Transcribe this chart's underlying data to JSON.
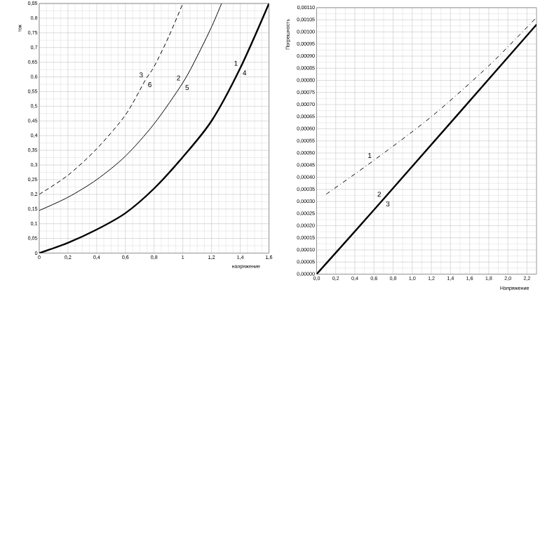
{
  "chart_data": [
    {
      "type": "line",
      "xlabel": "напряжение",
      "ylabel": "ток",
      "xlim": [
        0,
        1.6
      ],
      "ylim": [
        0,
        0.85
      ],
      "grid": true,
      "xticks": [
        0,
        {
          "value": 0.2,
          "label": "0,2"
        },
        {
          "value": 0.4,
          "label": "0,4"
        },
        {
          "value": 0.6,
          "label": "0,6"
        },
        {
          "value": 0.8,
          "label": "0,8"
        },
        1,
        {
          "value": 1.2,
          "label": "1,2"
        },
        {
          "value": 1.4,
          "label": "1,4"
        },
        {
          "value": 1.6,
          "label": "1,6"
        }
      ],
      "yticks": [
        0,
        {
          "value": 0.05,
          "label": "0,05"
        },
        {
          "value": 0.1,
          "label": "0,1"
        },
        {
          "value": 0.15,
          "label": "0,15"
        },
        {
          "value": 0.2,
          "label": "0,2"
        },
        {
          "value": 0.25,
          "label": "0,25"
        },
        {
          "value": 0.3,
          "label": "0,3"
        },
        {
          "value": 0.35,
          "label": "0,35"
        },
        {
          "value": 0.4,
          "label": "0,4"
        },
        {
          "value": 0.45,
          "label": "0,45"
        },
        {
          "value": 0.5,
          "label": "0,5"
        },
        {
          "value": 0.55,
          "label": "0,55"
        },
        {
          "value": 0.6,
          "label": "0,6"
        },
        {
          "value": 0.65,
          "label": "0,65"
        },
        {
          "value": 0.7,
          "label": "0,7"
        },
        {
          "value": 0.75,
          "label": "0,75"
        },
        {
          "value": 0.8,
          "label": "0,8"
        },
        {
          "value": 0.85,
          "label": "0,85"
        }
      ],
      "series": [
        {
          "color": "#000000",
          "line_style": "dotted",
          "x": [
            0,
            0.2,
            0.4,
            0.6,
            0.74,
            0.8,
            0.9,
            1.0
          ],
          "values": [
            0.2,
            0.265,
            0.355,
            0.47,
            0.59,
            0.635,
            0.735,
            0.85
          ]
        },
        {
          "color": "#000000",
          "line_style": "solid",
          "x": [
            0,
            0.2,
            0.4,
            0.6,
            0.8,
            1.0,
            1.1,
            1.2,
            1.27
          ],
          "values": [
            0.145,
            0.19,
            0.25,
            0.33,
            0.44,
            0.58,
            0.67,
            0.77,
            0.85
          ]
        },
        {
          "color": "#000000",
          "line_style": "solid",
          "x": [
            0,
            0.2,
            0.4,
            0.6,
            0.8,
            1.0,
            1.2,
            1.4,
            1.6
          ],
          "values": [
            0,
            0.035,
            0.08,
            0.136,
            0.22,
            0.327,
            0.45,
            0.63,
            0.85
          ]
        }
      ],
      "annotations": [
        {
          "text": "3",
          "x": 0.74,
          "y": 0.59
        },
        {
          "text": "6",
          "x": 0.74,
          "y": 0.59
        },
        {
          "text": "2",
          "x": 1.0,
          "y": 0.58
        },
        {
          "text": "5",
          "x": 1.0,
          "y": 0.58
        },
        {
          "text": "1",
          "x": 1.4,
          "y": 0.63
        },
        {
          "text": "4",
          "x": 1.4,
          "y": 0.63
        }
      ]
    },
    {
      "type": "line",
      "xlabel": "Напряжение",
      "ylabel": "Погрешность",
      "xlim": [
        0,
        2.3
      ],
      "ylim": [
        0,
        0.0011
      ],
      "grid": true,
      "xticks": [
        {
          "value": 0,
          "label": "0,0"
        },
        {
          "value": 0.2,
          "label": "0,2"
        },
        {
          "value": 0.4,
          "label": "0,4"
        },
        {
          "value": 0.6,
          "label": "0,6"
        },
        {
          "value": 0.8,
          "label": "0,8"
        },
        {
          "value": 1.0,
          "label": "1,0"
        },
        {
          "value": 1.2,
          "label": "1,2"
        },
        {
          "value": 1.4,
          "label": "1,4"
        },
        {
          "value": 1.6,
          "label": "1,6"
        },
        {
          "value": 1.8,
          "label": "1,8"
        },
        {
          "value": 2.0,
          "label": "2,0"
        },
        {
          "value": 2.2,
          "label": "2,2"
        }
      ],
      "yticks": [
        {
          "value": 0,
          "label": "0,00000"
        },
        {
          "value": 5e-05,
          "label": "0,00005"
        },
        {
          "value": 0.0001,
          "label": "0,00010"
        },
        {
          "value": 0.00015,
          "label": "0,00015"
        },
        {
          "value": 0.0002,
          "label": "0,00020"
        },
        {
          "value": 0.00025,
          "label": "0,00025"
        },
        {
          "value": 0.0003,
          "label": "0,00030"
        },
        {
          "value": 0.00035,
          "label": "0,00035"
        },
        {
          "value": 0.0004,
          "label": "0,00040"
        },
        {
          "value": 0.00045,
          "label": "0,00045"
        },
        {
          "value": 0.0005,
          "label": "0,00050"
        },
        {
          "value": 0.00055,
          "label": "0,00055"
        },
        {
          "value": 0.0006,
          "label": "0,00060"
        },
        {
          "value": 0.00065,
          "label": "0,00065"
        },
        {
          "value": 0.0007,
          "label": "0,00070"
        },
        {
          "value": 0.00075,
          "label": "0,00075"
        },
        {
          "value": 0.0008,
          "label": "0,00080"
        },
        {
          "value": 0.00085,
          "label": "0,00085"
        },
        {
          "value": 0.0009,
          "label": "0,00090"
        },
        {
          "value": 0.00095,
          "label": "0,00095"
        },
        {
          "value": 0.001,
          "label": "0,00100"
        },
        {
          "value": 0.00105,
          "label": "0,00105"
        },
        {
          "value": 0.0011,
          "label": "0,00110"
        }
      ],
      "series": [
        {
          "color": "#000000",
          "line_style": "dashed",
          "x": [
            0.1,
            0.6,
            1.2,
            1.8,
            2.3
          ],
          "values": [
            0.00033,
            0.00047,
            0.00065,
            0.00086,
            0.00106
          ]
        },
        {
          "color": "#000000",
          "line_style": "solid",
          "x": [
            0,
            0.7,
            2.3
          ],
          "values": [
            0,
            0.00031,
            0.00103
          ]
        }
      ],
      "annotations": [
        {
          "text": "2",
          "x": 0.7,
          "y": 0.00031
        },
        {
          "text": "3",
          "x": 0.7,
          "y": 0.00031
        },
        {
          "text": "1",
          "x": 0.6,
          "y": 0.00047
        }
      ]
    }
  ]
}
